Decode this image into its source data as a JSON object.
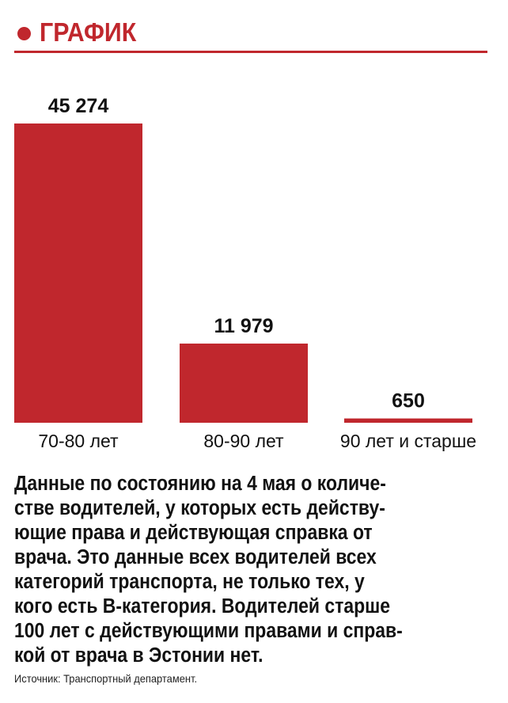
{
  "header": {
    "title": "ГРАФИК"
  },
  "colors": {
    "accent": "#c0272d",
    "text": "#111111"
  },
  "chart_data": {
    "type": "bar",
    "title": "",
    "xlabel": "",
    "ylabel": "",
    "categories": [
      "70-80 лет",
      "80-90 лет",
      "90 лет и старше"
    ],
    "values": [
      45274,
      11979,
      650
    ],
    "value_labels": [
      "45 274",
      "11 979",
      "650"
    ],
    "ylim": [
      0,
      45274
    ],
    "grid": false,
    "legend": "none"
  },
  "caption": {
    "lines": [
      "Данные по состоянию на 4 мая о количе-",
      "стве водителей, у которых есть действу-",
      "ющие права и действующая справка от",
      "врача. Это данные всех водителей всех",
      "категорий транспорта, не только тех, у",
      "кого есть B-категория. Водителей старше",
      "100 лет с действующими правами и справ-",
      "кой от врача в Эстонии нет."
    ]
  },
  "source": "Источник: Транспортный департамент."
}
